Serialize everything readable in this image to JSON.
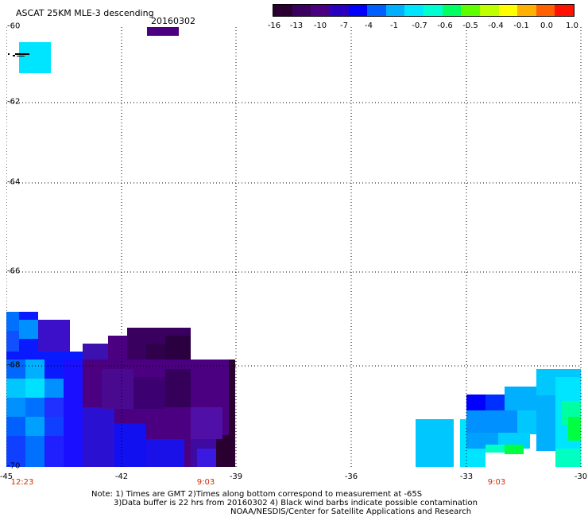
{
  "header": {
    "title": "ASCAT 25KM MLE-3 descending",
    "date": "20160302"
  },
  "colorbar": {
    "colors": [
      "#2a0030",
      "#3a0060",
      "#4b0082",
      "#2a00c0",
      "#0000ff",
      "#0060ff",
      "#00b0ff",
      "#00e5ff",
      "#00ffd0",
      "#00ff60",
      "#60ff00",
      "#c0ff00",
      "#ffff00",
      "#ffb000",
      "#ff6000",
      "#ff1000"
    ],
    "labels": [
      "-16",
      "-13",
      "-10",
      "-7",
      "-4",
      "-1",
      "-0.7",
      "-0.6",
      "-0.5",
      "-0.4",
      "-0.1",
      "0.0",
      "1.0"
    ]
  },
  "axes": {
    "lat_labels": [
      "-60",
      "-62",
      "-64",
      "-66",
      "-68",
      "-70"
    ],
    "lon_labels": [
      "-45",
      "-42",
      "-39",
      "-36",
      "-33",
      "-30"
    ]
  },
  "time_labels": [
    "12:23",
    "9:03",
    "9:03"
  ],
  "notes": {
    "line1": "Note: 1) Times are GMT 2)Times along bottom correspond to measurement at -65S",
    "line2": "3)Data buffer is 22 hrs from 20160302 4) Black wind barbs indicate possible contamination",
    "line3": "NOAA/NESDIS/Center for Satellite Applications and Research"
  }
}
